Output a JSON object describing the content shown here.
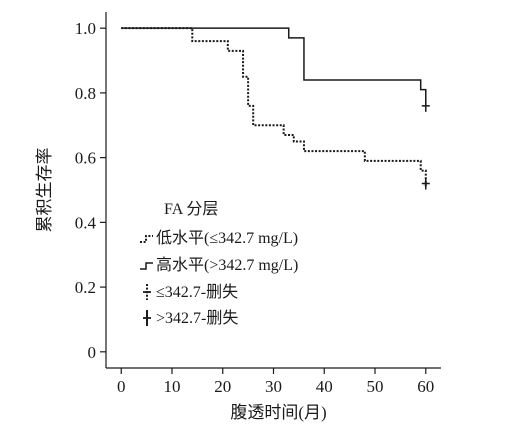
{
  "chart_data": {
    "type": "line",
    "subtype": "kaplan-meier step",
    "title": "",
    "xlabel": "腹透时间(月)",
    "ylabel": "累积生存率",
    "xlim": [
      -3,
      63
    ],
    "ylim": [
      -0.05,
      1.05
    ],
    "x_ticks": [
      0,
      10,
      20,
      30,
      40,
      50,
      60
    ],
    "y_ticks": [
      0,
      0.2,
      0.4,
      0.6,
      0.8,
      1.0
    ],
    "y_tick_labels": [
      "0",
      "0.2",
      "0.4",
      "0.6",
      "0.8",
      "1.0"
    ],
    "grid": false,
    "legend": {
      "title": "FA 分层",
      "placement": "center-left",
      "entries": [
        {
          "label": "低水平(≤342.7 mg/L)",
          "kind": "line",
          "series": 0
        },
        {
          "label": "高水平(>342.7 mg/L)",
          "kind": "line",
          "series": 1
        },
        {
          "label": "≤342.7-删失",
          "kind": "censor",
          "series": 0
        },
        {
          "label": ">342.7-删失",
          "kind": "censor",
          "series": 1
        }
      ]
    },
    "series": [
      {
        "style": "dotted",
        "color": "#1a1a1a",
        "x": [
          0,
          13,
          14,
          20,
          21,
          23,
          24,
          25,
          26,
          30,
          32,
          34,
          36,
          42,
          48,
          56,
          59,
          60
        ],
        "y": [
          1.0,
          1.0,
          0.96,
          0.96,
          0.93,
          0.93,
          0.85,
          0.76,
          0.7,
          0.7,
          0.67,
          0.65,
          0.62,
          0.62,
          0.59,
          0.59,
          0.56,
          0.51
        ],
        "censored": [
          {
            "x": 60,
            "y": 0.52
          }
        ]
      },
      {
        "style": "solid",
        "color": "#1a1a1a",
        "x": [
          0,
          20,
          33,
          36,
          47,
          59,
          60
        ],
        "y": [
          1.0,
          1.0,
          0.97,
          0.84,
          0.84,
          0.81,
          0.76
        ],
        "censored": [
          {
            "x": 60,
            "y": 0.76
          }
        ]
      }
    ]
  }
}
